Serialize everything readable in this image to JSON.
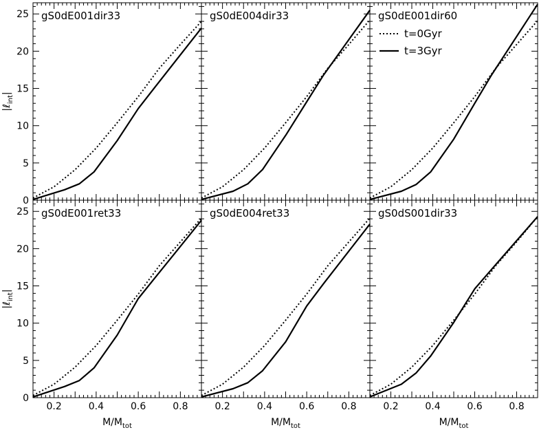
{
  "chart_data": [
    {
      "type": "line",
      "title": "gS0dE001dir33",
      "xlabel": "M/M",
      "xlabel_sub": "tot",
      "ylabel": "|ℓ",
      "ylabel_sub": "int",
      "ylabel_close": "|",
      "xlim": [
        0.1,
        0.9
      ],
      "ylim": [
        0,
        26.5
      ],
      "series": [
        {
          "name": "t=0Gyr",
          "style": "dotted",
          "x": [
            0.1,
            0.2,
            0.3,
            0.4,
            0.5,
            0.6,
            0.7,
            0.8,
            0.9
          ],
          "y": [
            0.3,
            1.8,
            4.1,
            7.0,
            10.4,
            13.9,
            17.7,
            20.9,
            24.0
          ]
        },
        {
          "name": "t=3Gyr",
          "style": "solid",
          "x": [
            0.1,
            0.25,
            0.32,
            0.39,
            0.5,
            0.6,
            0.68,
            0.9
          ],
          "y": [
            0.1,
            1.4,
            2.2,
            3.8,
            8.0,
            12.3,
            15.2,
            23.1
          ]
        }
      ]
    },
    {
      "type": "line",
      "title": "gS0dE004dir33",
      "xlabel": "M/M",
      "xlabel_sub": "tot",
      "ylabel": "",
      "xlim": [
        0.1,
        0.9
      ],
      "ylim": [
        0,
        26.5
      ],
      "series": [
        {
          "name": "t=0Gyr",
          "style": "dotted",
          "x": [
            0.1,
            0.2,
            0.3,
            0.4,
            0.5,
            0.6,
            0.7,
            0.8,
            0.9
          ],
          "y": [
            0.3,
            1.8,
            4.1,
            7.0,
            10.4,
            13.9,
            17.7,
            20.9,
            24.2
          ]
        },
        {
          "name": "t=3Gyr",
          "style": "solid",
          "x": [
            0.1,
            0.25,
            0.32,
            0.39,
            0.5,
            0.6,
            0.68,
            0.9
          ],
          "y": [
            0.1,
            1.2,
            2.2,
            4.1,
            8.7,
            13.2,
            16.8,
            25.5
          ]
        }
      ]
    },
    {
      "type": "line",
      "title": "gS0dE001dir60",
      "xlabel": "M/M",
      "xlabel_sub": "tot",
      "ylabel": "",
      "xlim": [
        0.1,
        0.9
      ],
      "ylim": [
        0,
        26.5
      ],
      "legend": {
        "placement": "top-left",
        "entries": [
          "t=0Gyr",
          "t=3Gyr"
        ]
      },
      "series": [
        {
          "name": "t=0Gyr",
          "style": "dotted",
          "x": [
            0.1,
            0.2,
            0.3,
            0.4,
            0.5,
            0.6,
            0.7,
            0.8,
            0.9
          ],
          "y": [
            0.3,
            1.8,
            4.1,
            7.0,
            10.4,
            13.9,
            17.7,
            20.9,
            24.1
          ]
        },
        {
          "name": "t=3Gyr",
          "style": "solid",
          "x": [
            0.1,
            0.25,
            0.32,
            0.39,
            0.5,
            0.6,
            0.68,
            0.9
          ],
          "y": [
            0.1,
            1.2,
            2.1,
            3.8,
            8.2,
            13.0,
            16.8,
            26.3
          ]
        }
      ]
    },
    {
      "type": "line",
      "title": "gS0dE001ret33",
      "xlabel": "M/M",
      "xlabel_sub": "tot",
      "ylabel": "|ℓ",
      "ylabel_sub": "int",
      "ylabel_close": "|",
      "xlim": [
        0.1,
        0.9
      ],
      "ylim": [
        0,
        26.5
      ],
      "series": [
        {
          "name": "t=0Gyr",
          "style": "dotted",
          "x": [
            0.1,
            0.2,
            0.3,
            0.4,
            0.5,
            0.6,
            0.7,
            0.8,
            0.9
          ],
          "y": [
            0.3,
            1.8,
            4.1,
            7.0,
            10.4,
            13.9,
            17.7,
            20.9,
            24.1
          ]
        },
        {
          "name": "t=3Gyr",
          "style": "solid",
          "x": [
            0.1,
            0.25,
            0.32,
            0.39,
            0.5,
            0.6,
            0.68,
            0.9
          ],
          "y": [
            0.1,
            1.5,
            2.3,
            4.0,
            8.4,
            13.3,
            16.1,
            23.8
          ]
        }
      ]
    },
    {
      "type": "line",
      "title": "gS0dE004ret33",
      "xlabel": "M/M",
      "xlabel_sub": "tot",
      "ylabel": "",
      "xlim": [
        0.1,
        0.9
      ],
      "ylim": [
        0,
        26.5
      ],
      "series": [
        {
          "name": "t=0Gyr",
          "style": "dotted",
          "x": [
            0.1,
            0.2,
            0.3,
            0.4,
            0.5,
            0.6,
            0.7,
            0.8,
            0.9
          ],
          "y": [
            0.3,
            1.8,
            4.1,
            7.0,
            10.4,
            13.9,
            17.7,
            20.9,
            24.1
          ]
        },
        {
          "name": "t=3Gyr",
          "style": "solid",
          "x": [
            0.1,
            0.25,
            0.32,
            0.39,
            0.5,
            0.6,
            0.68,
            0.9
          ],
          "y": [
            0.1,
            1.2,
            2.0,
            3.6,
            7.5,
            12.3,
            15.3,
            23.3
          ]
        }
      ]
    },
    {
      "type": "line",
      "title": "gS0dS001dir33",
      "xlabel": "M/M",
      "xlabel_sub": "tot",
      "ylabel": "",
      "xlim": [
        0.1,
        0.9
      ],
      "ylim": [
        0,
        26.5
      ],
      "series": [
        {
          "name": "t=0Gyr",
          "style": "dotted",
          "x": [
            0.1,
            0.2,
            0.3,
            0.4,
            0.5,
            0.6,
            0.7,
            0.8,
            0.9
          ],
          "y": [
            0.3,
            1.8,
            4.1,
            7.0,
            10.4,
            13.9,
            17.7,
            20.9,
            24.3
          ]
        },
        {
          "name": "t=3Gyr",
          "style": "solid",
          "x": [
            0.1,
            0.25,
            0.32,
            0.39,
            0.5,
            0.6,
            0.68,
            0.9
          ],
          "y": [
            0.1,
            1.8,
            3.3,
            5.6,
            10.1,
            14.6,
            17.2,
            24.3
          ]
        }
      ]
    }
  ],
  "shared_axes": {
    "y_ticks": [
      0,
      5,
      10,
      15,
      20,
      25
    ],
    "x_ticks": [
      0.2,
      0.4,
      0.6,
      0.8
    ]
  }
}
